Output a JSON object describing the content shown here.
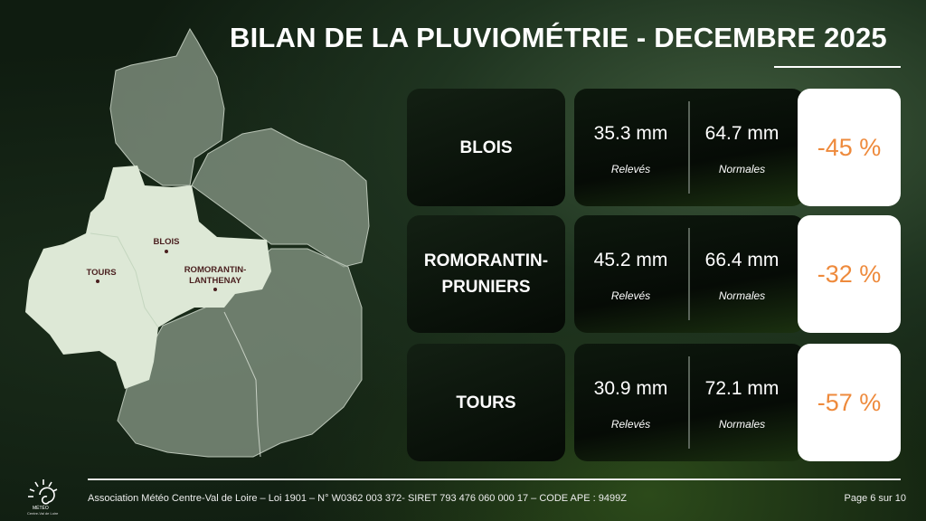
{
  "title": "BILAN DE LA PLUVIOMÉTRIE - DECEMBRE 2025",
  "map": {
    "labels": {
      "blois": "BLOIS",
      "tours": "TOURS",
      "romorantin_1": "ROMORANTIN-",
      "romorantin_2": "LANTHENAY"
    }
  },
  "rows": [
    {
      "city_1": "BLOIS",
      "city_2": "",
      "releves": "35.3 mm",
      "normales": "64.7 mm",
      "releves_label": "Relevés",
      "normales_label": "Normales",
      "ecart": "-45 %"
    },
    {
      "city_1": "ROMORANTIN-",
      "city_2": "PRUNIERS",
      "releves": "45.2 mm",
      "normales": "66.4 mm",
      "releves_label": "Relevés",
      "normales_label": "Normales",
      "ecart": "-32 %"
    },
    {
      "city_1": "TOURS",
      "city_2": "",
      "releves": "30.9 mm",
      "normales": "72.1 mm",
      "releves_label": "Relevés",
      "normales_label": "Normales",
      "ecart": "-57 %"
    }
  ],
  "logo": {
    "name": "MÉTÉO",
    "sub": "Centre-Val de Loire"
  },
  "footer": {
    "text": "Association Météo Centre-Val de Loire – Loi 1901 – N° W0362 003 372- SIRET 793 476 060 000 17 – CODE APE : 9499Z",
    "page": "Page 6 sur 10"
  },
  "colors": {
    "accent": "#ee8a3c",
    "map_highlight": "#dde8d6",
    "map_other": "#8a9a88"
  }
}
